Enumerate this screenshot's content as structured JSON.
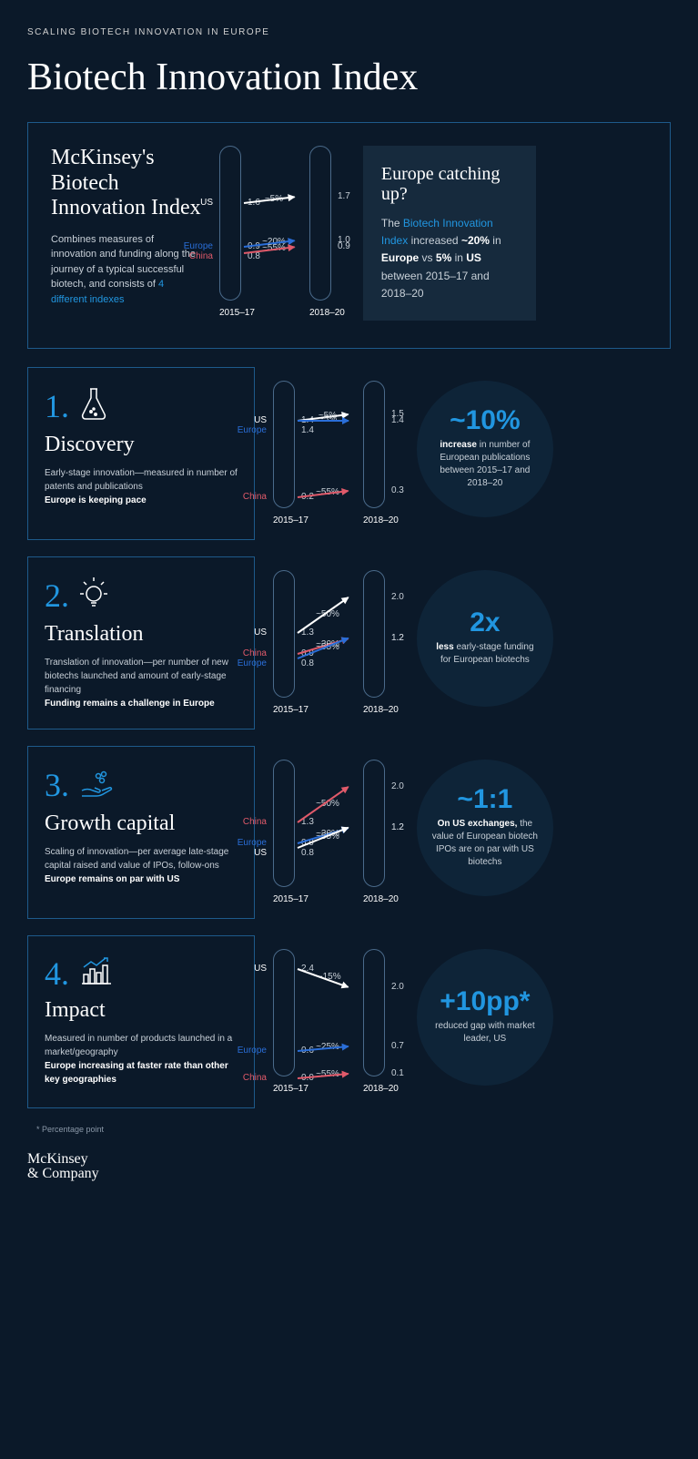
{
  "eyebrow": "SCALING BIOTECH INNOVATION IN EUROPE",
  "title": "Biotech Innovation Index",
  "colors": {
    "us": "#ffffff",
    "europe": "#2a6ed8",
    "china": "#e05a6a",
    "accent": "#2196e0",
    "bg": "#0b1929",
    "panel_border": "#1e5a8a",
    "callout_bg": "#162a3d",
    "circle_bg": "#0e2438"
  },
  "main_panel": {
    "left_title": "McKinsey's Biotech Innovation Index",
    "left_text_1": "Combines measures of innovation and funding along the journey of a typical successful biotech, and consists of ",
    "left_hl": "4 different indexes",
    "period_a": "2015–17",
    "period_b": "2018–20",
    "rows": [
      {
        "label": "US",
        "color": "#ffffff",
        "a": 1.6,
        "b": 1.7,
        "pct": "~5%"
      },
      {
        "label": "Europe",
        "color": "#2a6ed8",
        "a": 0.9,
        "b": 1.0,
        "pct": "~20%"
      },
      {
        "label": "China",
        "color": "#e05a6a",
        "a": 0.8,
        "b": 0.9,
        "pct": "~55%"
      }
    ],
    "scale_max": 2.5,
    "callout_title": "Europe catching up?",
    "callout_pre": "The ",
    "callout_hl": "Biotech Innovation Index",
    "callout_mid": " increased ",
    "callout_eu_pct": "~20%",
    "callout_eu": " in ",
    "callout_eu_b": "Europe",
    "callout_vs": " vs ",
    "callout_us_pct": "5%",
    "callout_us": " in ",
    "callout_us_b": "US",
    "callout_tail": " between 2015–17 and 2018–20"
  },
  "sections": [
    {
      "num": "1.",
      "title": "Discovery",
      "desc": "Early-stage innovation—measured in number of patents and publications",
      "desc_b": "Europe is keeping pace",
      "period_a": "2015–17",
      "period_b": "2018–20",
      "scale_max": 2.0,
      "rows": [
        {
          "label": "US",
          "color": "#ffffff",
          "a": 1.4,
          "b": 1.5,
          "pct": "~5%"
        },
        {
          "label": "Europe",
          "color": "#2a6ed8",
          "a": 1.4,
          "b": 1.4,
          "pct": "~5%"
        },
        {
          "label": "China",
          "color": "#e05a6a",
          "a": 0.2,
          "b": 0.3,
          "pct": "~55%"
        }
      ],
      "stat_big": "~10%",
      "stat_lead": "increase",
      "stat_text": " in number of European publications between 2015–17 and 2018–20"
    },
    {
      "num": "2.",
      "title": "Translation",
      "desc": "Translation of innovation—per number of new biotechs launched and amount of early-stage financing",
      "desc_b": "Funding remains a challenge in Europe",
      "period_a": "2015–17",
      "period_b": "2018–20",
      "scale_max": 2.5,
      "rows": [
        {
          "label": "US",
          "color": "#ffffff",
          "a": 1.3,
          "b": 2.0,
          "pct": "~50%"
        },
        {
          "label": "China",
          "color": "#e05a6a",
          "a": 0.9,
          "b": 1.2,
          "pct": "~30%"
        },
        {
          "label": "Europe",
          "color": "#2a6ed8",
          "a": 0.8,
          "b": 1.2,
          "pct": "~55%"
        }
      ],
      "stat_big": "2x",
      "stat_lead": "less",
      "stat_text": " early-stage funding for European biotechs"
    },
    {
      "num": "3.",
      "title": "Growth capital",
      "desc": "Scaling of innovation—per average late-stage capital raised and value of IPOs, follow-ons",
      "desc_b": "Europe remains on par with US",
      "period_a": "2015–17",
      "period_b": "2018–20",
      "scale_max": 2.5,
      "rows": [
        {
          "label": "China",
          "color": "#e05a6a",
          "a": 1.3,
          "b": 2.0,
          "pct": "~50%"
        },
        {
          "label": "Europe",
          "color": "#2a6ed8",
          "a": 0.9,
          "b": 1.2,
          "pct": "~30%"
        },
        {
          "label": "US",
          "color": "#ffffff",
          "a": 0.8,
          "b": 1.2,
          "pct": "~55%"
        }
      ],
      "stat_big": "~1:1",
      "stat_lead": "On US exchanges,",
      "stat_text": " the value of European biotech IPOs are on par with US biotechs"
    },
    {
      "num": "4.",
      "title": "Impact",
      "desc": "Measured in number of products launched in a market/geography",
      "desc_b": "Europe increasing at faster rate than other key geographies",
      "period_a": "2015–17",
      "period_b": "2018–20",
      "scale_max": 2.8,
      "rows": [
        {
          "label": "US",
          "color": "#ffffff",
          "a": 2.4,
          "b": 2.0,
          "pct": "~-15%"
        },
        {
          "label": "Europe",
          "color": "#2a6ed8",
          "a": 0.6,
          "b": 0.7,
          "pct": "~25%"
        },
        {
          "label": "China",
          "color": "#e05a6a",
          "a": 0.0,
          "b": 0.1,
          "pct": "~55%"
        }
      ],
      "stat_big": "+10pp*",
      "stat_lead": "",
      "stat_text": "reduced gap with market leader, US"
    }
  ],
  "footnote": "* Percentage point",
  "logo_1": "McKinsey",
  "logo_2": "& Company"
}
